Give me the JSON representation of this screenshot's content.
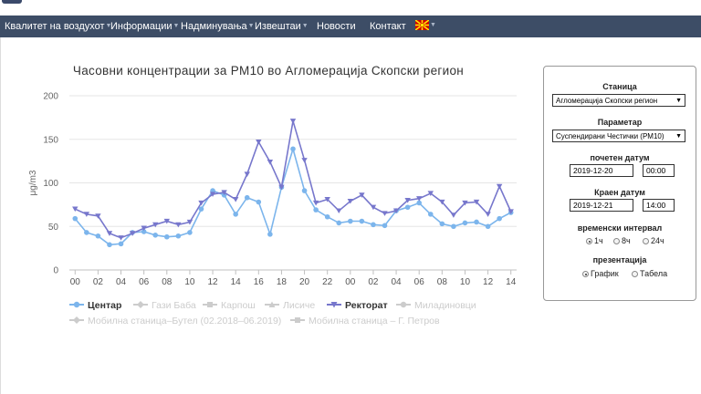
{
  "nav": {
    "items": [
      {
        "label": "Квалитет на воздухот"
      },
      {
        "label": "Информации"
      },
      {
        "label": "Надминувања"
      },
      {
        "label": "Извештаи"
      },
      {
        "label": "Новости"
      },
      {
        "label": "Контакт"
      }
    ],
    "language_flag": "flag-icon"
  },
  "chart_data": {
    "type": "line",
    "title": "Часовни концентрации за PM10 во Агломерација Скопски регион",
    "ylabel": "μg/m3",
    "ylim": [
      0,
      200
    ],
    "yticks": [
      "0",
      "50",
      "100",
      "150",
      "200"
    ],
    "x_tick_labels": [
      "00",
      "02",
      "04",
      "06",
      "08",
      "10",
      "12",
      "14",
      "16",
      "18",
      "20",
      "22",
      "00",
      "02",
      "04",
      "06",
      "08",
      "10",
      "12",
      "14"
    ],
    "grid": "horizontal",
    "legend_position": "bottom",
    "series": [
      {
        "name": "Центар",
        "color": "#7cb5ec",
        "marker": "circle",
        "visible": true,
        "values": [
          59,
          43,
          39,
          29,
          30,
          43,
          44,
          40,
          38,
          39,
          43,
          70,
          91,
          86,
          64,
          83,
          78,
          41,
          95,
          139,
          91,
          69,
          61,
          54,
          56,
          56,
          52,
          51,
          68,
          72,
          77,
          64,
          53,
          50,
          54,
          55,
          50,
          59,
          66
        ]
      },
      {
        "name": "Ректорат",
        "color": "#7777cc",
        "marker": "triangle-down",
        "visible": true,
        "values": [
          70,
          64,
          62,
          42,
          37,
          42,
          48,
          52,
          56,
          52,
          55,
          77,
          87,
          89,
          81,
          110,
          147,
          124,
          95,
          171,
          126,
          77,
          81,
          68,
          79,
          86,
          72,
          65,
          68,
          80,
          82,
          88,
          78,
          63,
          77,
          78,
          64,
          96,
          67
        ]
      }
    ],
    "hidden_series": [
      {
        "name": "Гази Баба",
        "marker": "diamond"
      },
      {
        "name": "Карпош",
        "marker": "square"
      },
      {
        "name": "Лисиче",
        "marker": "triangle"
      },
      {
        "name": "Миладиновци",
        "marker": "circle"
      },
      {
        "name": "Мобилна станица–Бутел (02.2018–06.2019)",
        "marker": "diamond"
      },
      {
        "name": "Мобилна станица – Г. Петров",
        "marker": "square"
      }
    ]
  },
  "panel": {
    "station_label": "Станица",
    "station_value": "Агломерација Скопски регион",
    "parameter_label": "Параметар",
    "parameter_value": "Суспендирани Честички (PM10)",
    "start_label": "почетен датум",
    "start_date": "2019-12-20",
    "start_time": "00:00",
    "end_label": "Краен датум",
    "end_date": "2019-12-21",
    "end_time": "14:00",
    "interval_label": "временски интервал",
    "interval_options": [
      "1ч",
      "8ч",
      "24ч"
    ],
    "interval_selected": "1ч",
    "presentation_label": "презентација",
    "presentation_options": [
      "График",
      "Табела"
    ],
    "presentation_selected": "График"
  }
}
